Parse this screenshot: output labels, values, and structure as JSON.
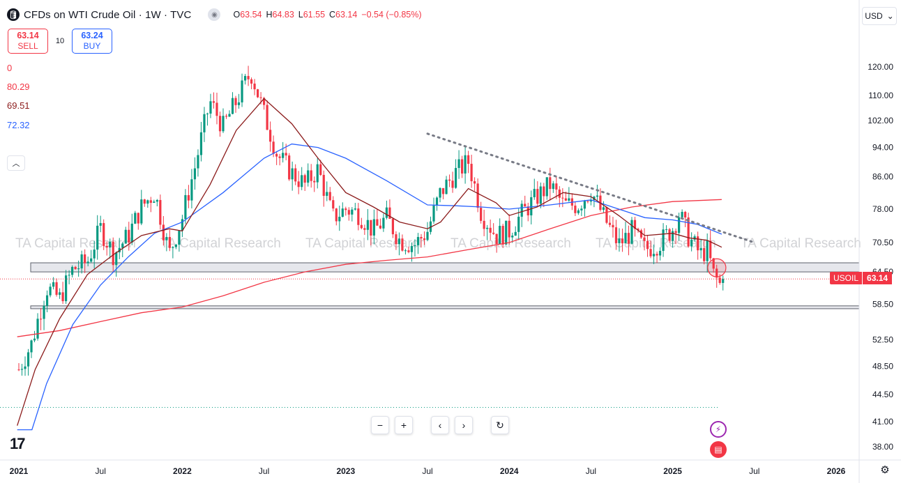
{
  "header": {
    "title": "CFDs on WTI Crude Oil · 1W · TVC",
    "ohlc": {
      "o_label": "O",
      "o": "63.54",
      "h_label": "H",
      "h": "64.83",
      "l_label": "L",
      "l": "61.55",
      "c_label": "C",
      "c": "63.14",
      "change": "−0.54 (−0.85%)"
    }
  },
  "trade": {
    "sell_price": "63.14",
    "sell_label": "SELL",
    "spread": "10",
    "buy_price": "63.24",
    "buy_label": "BUY"
  },
  "indicators": [
    {
      "value": "0",
      "color": "#f23645"
    },
    {
      "value": "80.29",
      "color": "#f23645"
    },
    {
      "value": "69.51",
      "color": "#8b1a1a"
    },
    {
      "value": "72.32",
      "color": "#2962ff"
    }
  ],
  "currency": "USD",
  "watermark": "TA Capital Research",
  "symbol_label": {
    "name": "USOIL",
    "price": "63.14"
  },
  "colors": {
    "up": "#089981",
    "down": "#f23645",
    "ma_fast": "#8b1a1a",
    "ma_mid": "#2962ff",
    "ma_slow": "#f23645"
  },
  "chart_data": {
    "type": "candlestick",
    "y_scale": "log",
    "ylim": [
      36.5,
      135
    ],
    "y_ticks": [
      120,
      110,
      102,
      94,
      86,
      78,
      70.5,
      64.5,
      58.5,
      52.5,
      48.5,
      44.5,
      41,
      38
    ],
    "y_tick_labels": [
      "120.00",
      "110.00",
      "102.00",
      "94.00",
      "86.00",
      "78.00",
      "70.50",
      "64.50",
      "58.50",
      "52.50",
      "48.50",
      "44.50",
      "41.00",
      "38.00"
    ],
    "x_labels": [
      "2021",
      "Jul",
      "2022",
      "Jul",
      "2023",
      "Jul",
      "2024",
      "Jul",
      "2025",
      "Jul",
      "2026"
    ],
    "x_label_dates": [
      2021.0,
      2021.5,
      2022.0,
      2022.5,
      2023.0,
      2023.5,
      2024.0,
      2024.5,
      2025.0,
      2025.5,
      2026.0
    ],
    "close_series": [
      [
        2021.0,
        48.0
      ],
      [
        2021.08,
        52.0
      ],
      [
        2021.17,
        61.5
      ],
      [
        2021.25,
        59.5
      ],
      [
        2021.33,
        65.0
      ],
      [
        2021.42,
        66.5
      ],
      [
        2021.5,
        73.5
      ],
      [
        2021.58,
        68.0
      ],
      [
        2021.67,
        72.0
      ],
      [
        2021.75,
        78.5
      ],
      [
        2021.83,
        82.0
      ],
      [
        2021.92,
        68.0
      ],
      [
        2022.0,
        76.0
      ],
      [
        2022.08,
        89.0
      ],
      [
        2022.17,
        108.0
      ],
      [
        2022.25,
        100.0
      ],
      [
        2022.33,
        108.0
      ],
      [
        2022.42,
        118.0
      ],
      [
        2022.5,
        104.0
      ],
      [
        2022.58,
        92.0
      ],
      [
        2022.67,
        87.0
      ],
      [
        2022.75,
        84.0
      ],
      [
        2022.83,
        88.0
      ],
      [
        2022.92,
        76.0
      ],
      [
        2023.0,
        78.0
      ],
      [
        2023.08,
        77.0
      ],
      [
        2023.17,
        73.0
      ],
      [
        2023.25,
        76.0
      ],
      [
        2023.33,
        71.0
      ],
      [
        2023.42,
        70.0
      ],
      [
        2023.5,
        73.0
      ],
      [
        2023.58,
        82.0
      ],
      [
        2023.67,
        87.0
      ],
      [
        2023.75,
        90.0
      ],
      [
        2023.83,
        77.0
      ],
      [
        2023.92,
        72.0
      ],
      [
        2024.0,
        73.0
      ],
      [
        2024.08,
        77.0
      ],
      [
        2024.17,
        81.0
      ],
      [
        2024.25,
        84.0
      ],
      [
        2024.33,
        79.0
      ],
      [
        2024.42,
        79.0
      ],
      [
        2024.5,
        82.5
      ],
      [
        2024.58,
        76.0
      ],
      [
        2024.67,
        70.0
      ],
      [
        2024.75,
        73.0
      ],
      [
        2024.83,
        69.0
      ],
      [
        2024.92,
        70.5
      ],
      [
        2025.0,
        73.5
      ],
      [
        2025.04,
        77.0
      ],
      [
        2025.1,
        71.5
      ],
      [
        2025.17,
        68.0
      ],
      [
        2025.21,
        69.0
      ],
      [
        2025.25,
        64.0
      ],
      [
        2025.29,
        62.0
      ],
      [
        2025.31,
        63.14
      ]
    ],
    "ma_fast_series": [
      [
        2020.99,
        40.5
      ],
      [
        2021.1,
        48.0
      ],
      [
        2021.25,
        56.0
      ],
      [
        2021.42,
        64.0
      ],
      [
        2021.58,
        68.0
      ],
      [
        2021.75,
        72.0
      ],
      [
        2021.92,
        73.5
      ],
      [
        2022.0,
        73.0
      ],
      [
        2022.17,
        84.0
      ],
      [
        2022.33,
        99.0
      ],
      [
        2022.5,
        109.0
      ],
      [
        2022.67,
        101.0
      ],
      [
        2022.83,
        91.0
      ],
      [
        2023.0,
        82.0
      ],
      [
        2023.17,
        78.5
      ],
      [
        2023.33,
        75.0
      ],
      [
        2023.5,
        73.5
      ],
      [
        2023.58,
        75.0
      ],
      [
        2023.75,
        83.0
      ],
      [
        2023.92,
        79.5
      ],
      [
        2024.0,
        76.5
      ],
      [
        2024.17,
        78.5
      ],
      [
        2024.33,
        82.0
      ],
      [
        2024.5,
        81.0
      ],
      [
        2024.67,
        76.5
      ],
      [
        2024.83,
        72.0
      ],
      [
        2025.0,
        72.5
      ],
      [
        2025.1,
        71.5
      ],
      [
        2025.21,
        71.0
      ],
      [
        2025.3,
        69.5
      ]
    ],
    "ma_mid_series": [
      [
        2020.99,
        40.0
      ],
      [
        2021.08,
        40.0
      ],
      [
        2021.17,
        46.0
      ],
      [
        2021.33,
        55.0
      ],
      [
        2021.5,
        62.0
      ],
      [
        2021.67,
        67.5
      ],
      [
        2021.83,
        72.5
      ],
      [
        2022.0,
        75.0
      ],
      [
        2022.25,
        82.0
      ],
      [
        2022.5,
        91.0
      ],
      [
        2022.67,
        95.0
      ],
      [
        2022.83,
        94.0
      ],
      [
        2023.0,
        91.0
      ],
      [
        2023.25,
        85.0
      ],
      [
        2023.5,
        79.0
      ],
      [
        2023.67,
        78.8
      ],
      [
        2023.83,
        78.5
      ],
      [
        2024.0,
        78.0
      ],
      [
        2024.25,
        79.0
      ],
      [
        2024.5,
        80.2
      ],
      [
        2024.67,
        78.0
      ],
      [
        2024.83,
        76.0
      ],
      [
        2025.0,
        75.5
      ],
      [
        2025.15,
        74.5
      ],
      [
        2025.3,
        72.3
      ]
    ],
    "ma_slow_series": [
      [
        2020.99,
        53.0
      ],
      [
        2021.25,
        54.0
      ],
      [
        2021.5,
        55.5
      ],
      [
        2021.75,
        57.0
      ],
      [
        2022.0,
        58.0
      ],
      [
        2022.25,
        60.0
      ],
      [
        2022.5,
        62.5
      ],
      [
        2022.75,
        64.5
      ],
      [
        2023.0,
        66.0
      ],
      [
        2023.25,
        66.8
      ],
      [
        2023.5,
        67.5
      ],
      [
        2023.75,
        69.0
      ],
      [
        2024.0,
        70.5
      ],
      [
        2024.25,
        73.5
      ],
      [
        2024.5,
        76.5
      ],
      [
        2024.75,
        78.5
      ],
      [
        2025.0,
        79.8
      ],
      [
        2025.3,
        80.29
      ]
    ],
    "trendline": [
      [
        2023.5,
        98.0
      ],
      [
        2025.5,
        70.5
      ]
    ],
    "support_zones": [
      [
        64.5,
        66.3
      ],
      [
        57.7,
        58.2
      ]
    ],
    "price_line": 63.14,
    "ghost_line": 42.8,
    "highlight_circle": [
      2025.27,
      65.3
    ]
  }
}
